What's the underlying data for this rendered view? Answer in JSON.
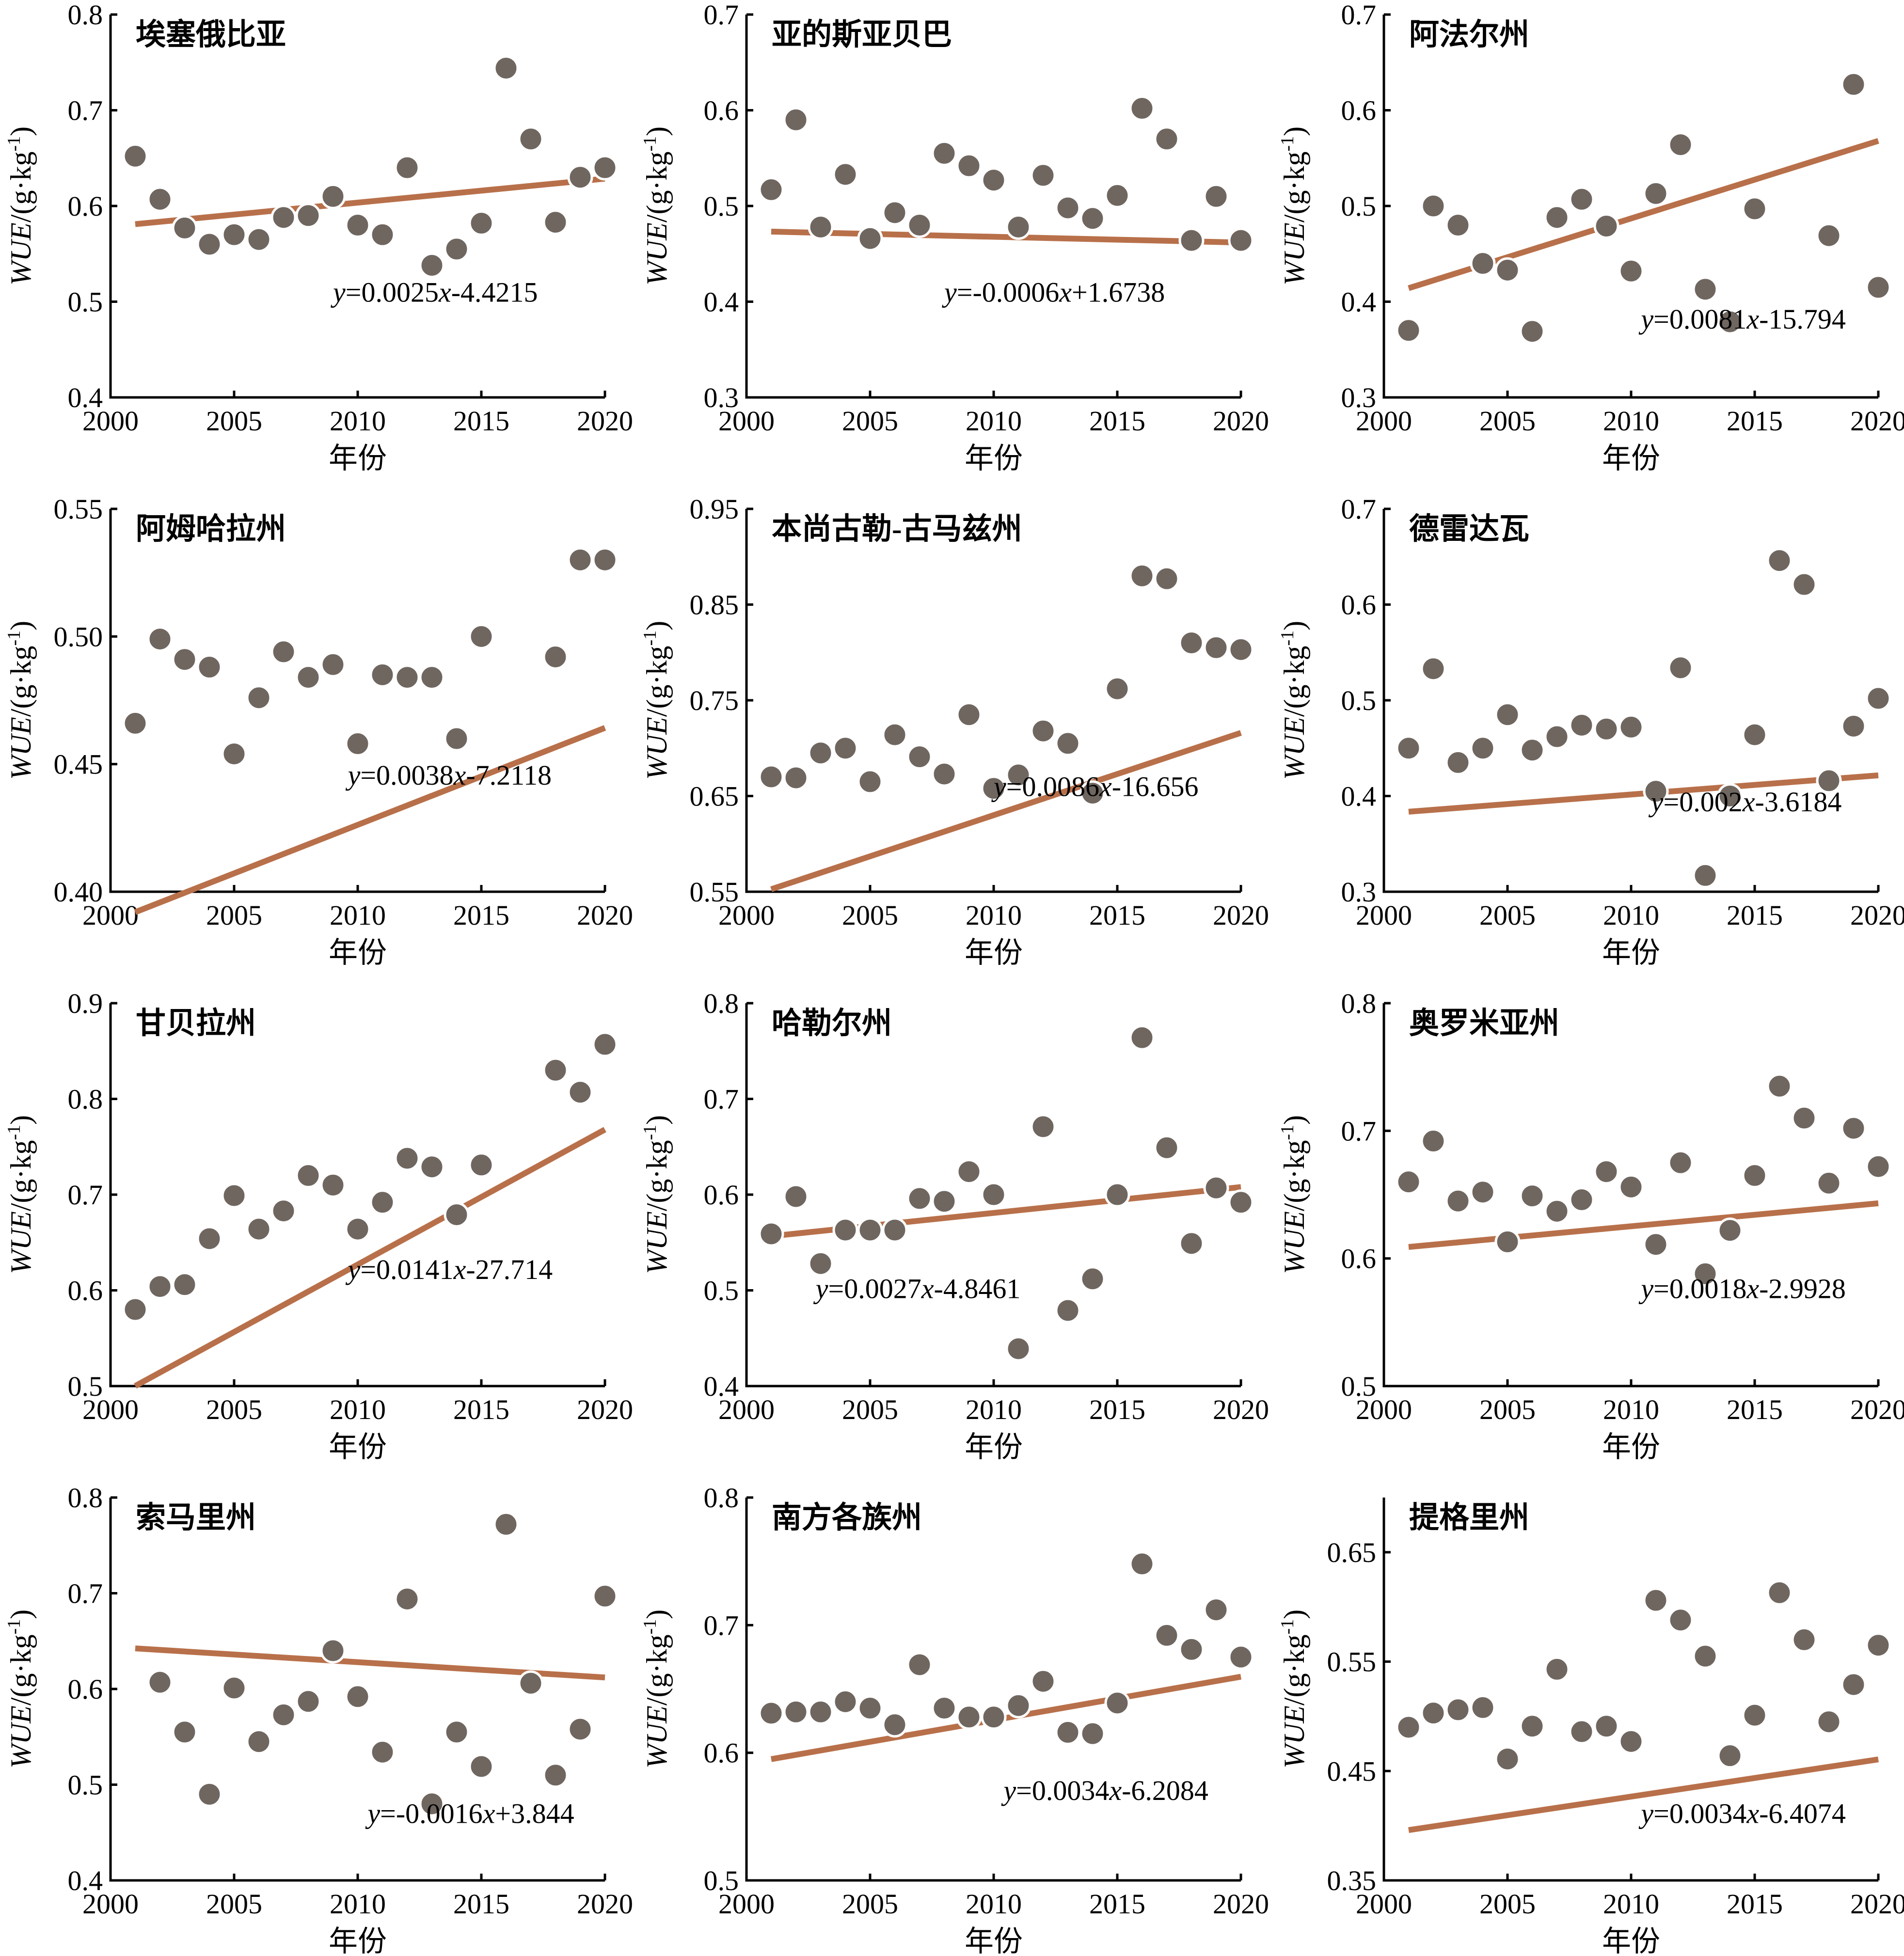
{
  "figure": {
    "xlabel": "年份",
    "ylabel_prefix": "WUE",
    "ylabel_unit": "/(g·kg",
    "ylabel_sup": "-1",
    "ylabel_close": ")"
  },
  "chart_data": [
    {
      "type": "scatter",
      "title": "埃塞俄比亚",
      "xlabel": "年份",
      "ylabel": "WUE/(g·kg-1)",
      "xlim": [
        2000,
        2020
      ],
      "ylim": [
        0.4,
        0.8
      ],
      "xticks": [
        2000,
        2005,
        2010,
        2015,
        2020
      ],
      "yticks": [
        "0.4",
        "0.5",
        "0.6",
        "0.7",
        "0.8"
      ],
      "x": [
        2001,
        2002,
        2003,
        2004,
        2005,
        2006,
        2007,
        2008,
        2009,
        2010,
        2011,
        2012,
        2013,
        2014,
        2015,
        2016,
        2017,
        2018,
        2019,
        2020
      ],
      "y": [
        0.652,
        0.607,
        0.577,
        0.56,
        0.57,
        0.565,
        0.588,
        0.59,
        0.61,
        0.58,
        0.57,
        0.64,
        0.538,
        0.555,
        0.582,
        0.744,
        0.67,
        0.583,
        0.63,
        0.64
      ],
      "fit": {
        "slope": 0.0025,
        "intercept": -4.4215,
        "equation": "y=0.0025x-4.4215"
      }
    },
    {
      "type": "scatter",
      "title": "亚的斯亚贝巴",
      "xlabel": "年份",
      "ylabel": "WUE/(g·kg-1)",
      "xlim": [
        2000,
        2020
      ],
      "ylim": [
        0.3,
        0.7
      ],
      "xticks": [
        2000,
        2005,
        2010,
        2015,
        2020
      ],
      "yticks": [
        "0.3",
        "0.4",
        "0.5",
        "0.6",
        "0.7"
      ],
      "x": [
        2001,
        2002,
        2003,
        2004,
        2005,
        2006,
        2007,
        2008,
        2009,
        2010,
        2011,
        2012,
        2013,
        2014,
        2015,
        2016,
        2017,
        2018,
        2019,
        2020
      ],
      "y": [
        0.517,
        0.59,
        0.478,
        0.533,
        0.466,
        0.493,
        0.48,
        0.555,
        0.542,
        0.527,
        0.478,
        0.532,
        0.498,
        0.487,
        0.511,
        0.602,
        0.57,
        0.464,
        0.51,
        0.464
      ],
      "fit": {
        "slope": -0.0006,
        "intercept": 1.6738,
        "equation": "y=-0.0006x+1.6738"
      }
    },
    {
      "type": "scatter",
      "title": "阿法尔州",
      "xlabel": "年份",
      "ylabel": "WUE/(g·kg-1)",
      "xlim": [
        2000,
        2020
      ],
      "ylim": [
        0.3,
        0.7
      ],
      "xticks": [
        2000,
        2005,
        2010,
        2015,
        2020
      ],
      "yticks": [
        "0.3",
        "0.4",
        "0.5",
        "0.6",
        "0.7"
      ],
      "x": [
        2001,
        2002,
        2003,
        2004,
        2005,
        2006,
        2007,
        2008,
        2009,
        2010,
        2011,
        2012,
        2013,
        2014,
        2015,
        2016,
        2017,
        2018,
        2019,
        2020
      ],
      "y": [
        0.37,
        0.5,
        0.48,
        0.44,
        0.433,
        0.369,
        0.488,
        0.507,
        0.479,
        0.432,
        0.513,
        0.564,
        0.413,
        0.379,
        0.497,
        null,
        null,
        0.469,
        0.627,
        0.415
      ],
      "fit": {
        "slope": 0.0081,
        "intercept": -15.794,
        "equation": "y=0.0081x-15.794"
      }
    },
    {
      "type": "scatter",
      "title": "阿姆哈拉州",
      "xlabel": "年份",
      "ylabel": "WUE/(g·kg-1)",
      "xlim": [
        2000,
        2020
      ],
      "ylim": [
        0.4,
        0.55
      ],
      "xticks": [
        2000,
        2005,
        2010,
        2015,
        2020
      ],
      "yticks": [
        "0.40",
        "0.45",
        "0.50",
        "0.55"
      ],
      "x": [
        2001,
        2002,
        2003,
        2004,
        2005,
        2006,
        2007,
        2008,
        2009,
        2010,
        2011,
        2012,
        2013,
        2014,
        2015,
        2016,
        2017,
        2018,
        2019,
        2020
      ],
      "y": [
        0.466,
        0.499,
        0.491,
        0.488,
        0.454,
        0.476,
        0.494,
        0.484,
        0.489,
        0.458,
        0.485,
        0.484,
        0.484,
        0.46,
        0.5,
        null,
        null,
        0.492,
        0.53,
        0.53
      ],
      "fit": {
        "slope": 0.0038,
        "intercept": -7.2118,
        "equation": "y=0.0038x-7.2118"
      }
    },
    {
      "type": "scatter",
      "title": "本尚古勒-古马兹州",
      "xlabel": "年份",
      "ylabel": "WUE/(g·kg-1)",
      "xlim": [
        2000,
        2020
      ],
      "ylim": [
        0.55,
        0.95
      ],
      "xticks": [
        2000,
        2005,
        2010,
        2015,
        2020
      ],
      "yticks": [
        "0.55",
        "0.65",
        "0.75",
        "0.85",
        "0.95"
      ],
      "x": [
        2001,
        2002,
        2003,
        2004,
        2005,
        2006,
        2007,
        2008,
        2009,
        2010,
        2011,
        2012,
        2013,
        2014,
        2015,
        2016,
        2017,
        2018,
        2019,
        2020
      ],
      "y": [
        0.67,
        0.669,
        0.695,
        0.7,
        0.665,
        0.714,
        0.691,
        0.673,
        0.735,
        0.658,
        0.672,
        0.718,
        0.705,
        0.653,
        0.762,
        0.88,
        0.877,
        0.81,
        0.805,
        0.803
      ],
      "fit": {
        "slope": 0.0086,
        "intercept": -16.656,
        "equation": "y=0.0086x-16.656"
      }
    },
    {
      "type": "scatter",
      "title": "德雷达瓦",
      "xlabel": "年份",
      "ylabel": "WUE/(g·kg-1)",
      "xlim": [
        2000,
        2020
      ],
      "ylim": [
        0.3,
        0.7
      ],
      "xticks": [
        2000,
        2005,
        2010,
        2015,
        2020
      ],
      "yticks": [
        "0.3",
        "0.4",
        "0.5",
        "0.6",
        "0.7"
      ],
      "x": [
        2001,
        2002,
        2003,
        2004,
        2005,
        2006,
        2007,
        2008,
        2009,
        2010,
        2011,
        2012,
        2013,
        2014,
        2015,
        2016,
        2017,
        2018,
        2019,
        2020
      ],
      "y": [
        0.45,
        0.533,
        0.435,
        0.45,
        0.485,
        0.448,
        0.462,
        0.474,
        0.47,
        0.472,
        0.405,
        0.534,
        0.317,
        0.4,
        0.464,
        0.646,
        0.621,
        0.416,
        0.473,
        0.502
      ],
      "fit": {
        "slope": 0.002,
        "intercept": -3.6184,
        "equation": "y=0.002x-3.6184"
      }
    },
    {
      "type": "scatter",
      "title": "甘贝拉州",
      "xlabel": "年份",
      "ylabel": "WUE/(g·kg-1)",
      "xlim": [
        2000,
        2020
      ],
      "ylim": [
        0.5,
        0.9
      ],
      "xticks": [
        2000,
        2005,
        2010,
        2015,
        2020
      ],
      "yticks": [
        "0.5",
        "0.6",
        "0.7",
        "0.8",
        "0.9"
      ],
      "x": [
        2001,
        2002,
        2003,
        2004,
        2005,
        2006,
        2007,
        2008,
        2009,
        2010,
        2011,
        2012,
        2013,
        2014,
        2015,
        2016,
        2017,
        2018,
        2019,
        2020
      ],
      "y": [
        0.58,
        0.604,
        0.606,
        0.654,
        0.699,
        0.664,
        0.683,
        0.72,
        0.71,
        0.664,
        0.692,
        0.738,
        0.729,
        0.679,
        0.731,
        null,
        null,
        0.83,
        0.807,
        0.857
      ],
      "fit": {
        "slope": 0.0141,
        "intercept": -27.714,
        "equation": "y=0.0141x-27.714"
      }
    },
    {
      "type": "scatter",
      "title": "哈勒尔州",
      "xlabel": "年份",
      "ylabel": "WUE/(g·kg-1)",
      "xlim": [
        2000,
        2020
      ],
      "ylim": [
        0.4,
        0.8
      ],
      "xticks": [
        2000,
        2005,
        2010,
        2015,
        2020
      ],
      "yticks": [
        "0.4",
        "0.5",
        "0.6",
        "0.7",
        "0.8"
      ],
      "x": [
        2001,
        2002,
        2003,
        2004,
        2005,
        2006,
        2007,
        2008,
        2009,
        2010,
        2011,
        2012,
        2013,
        2014,
        2015,
        2016,
        2017,
        2018,
        2019,
        2020
      ],
      "y": [
        0.559,
        0.598,
        0.528,
        0.563,
        0.563,
        0.563,
        0.596,
        0.593,
        0.624,
        0.6,
        0.439,
        0.671,
        0.479,
        0.512,
        0.6,
        0.764,
        0.649,
        0.549,
        0.607,
        0.592
      ],
      "fit": {
        "slope": 0.0027,
        "intercept": -4.8461,
        "equation": "y=0.0027x-4.8461"
      }
    },
    {
      "type": "scatter",
      "title": "奥罗米亚州",
      "xlabel": "年份",
      "ylabel": "WUE/(g·kg-1)",
      "xlim": [
        2000,
        2020
      ],
      "ylim": [
        0.5,
        0.8
      ],
      "xticks": [
        2000,
        2005,
        2010,
        2015,
        2020
      ],
      "yticks": [
        "0.5",
        "0.6",
        "0.7",
        "0.8"
      ],
      "x": [
        2001,
        2002,
        2003,
        2004,
        2005,
        2006,
        2007,
        2008,
        2009,
        2010,
        2011,
        2012,
        2013,
        2014,
        2015,
        2016,
        2017,
        2018,
        2019,
        2020
      ],
      "y": [
        0.66,
        0.692,
        0.645,
        0.652,
        0.613,
        0.649,
        0.637,
        0.646,
        0.668,
        0.656,
        0.611,
        0.675,
        0.588,
        0.622,
        0.665,
        0.735,
        0.71,
        0.659,
        0.702,
        0.672
      ],
      "fit": {
        "slope": 0.0018,
        "intercept": -2.9928,
        "equation": "y=0.0018x-2.9928"
      }
    },
    {
      "type": "scatter",
      "title": "索马里州",
      "xlabel": "年份",
      "ylabel": "WUE/(g·kg-1)",
      "xlim": [
        2000,
        2020
      ],
      "ylim": [
        0.4,
        0.8
      ],
      "xticks": [
        2000,
        2005,
        2010,
        2015,
        2020
      ],
      "yticks": [
        "0.4",
        "0.5",
        "0.6",
        "0.7",
        "0.8"
      ],
      "x": [
        2001,
        2002,
        2003,
        2004,
        2005,
        2006,
        2007,
        2008,
        2009,
        2010,
        2011,
        2012,
        2013,
        2014,
        2015,
        2016,
        2017,
        2018,
        2019,
        2020
      ],
      "y": [
        null,
        0.607,
        0.555,
        0.49,
        0.601,
        0.545,
        0.573,
        0.587,
        0.64,
        0.592,
        0.534,
        0.694,
        0.48,
        0.555,
        0.519,
        0.772,
        0.606,
        0.51,
        0.558,
        0.697
      ],
      "fit": {
        "slope": -0.0016,
        "intercept": 3.844,
        "equation": "y=-0.0016x+3.844"
      }
    },
    {
      "type": "scatter",
      "title": "南方各族州",
      "xlabel": "年份",
      "ylabel": "WUE/(g·kg-1)",
      "xlim": [
        2000,
        2020
      ],
      "ylim": [
        0.5,
        0.8
      ],
      "xticks": [
        2000,
        2005,
        2010,
        2015,
        2020
      ],
      "yticks": [
        "0.5",
        "0.6",
        "0.7",
        "0.8"
      ],
      "x": [
        2001,
        2002,
        2003,
        2004,
        2005,
        2006,
        2007,
        2008,
        2009,
        2010,
        2011,
        2012,
        2013,
        2014,
        2015,
        2016,
        2017,
        2018,
        2019,
        2020
      ],
      "y": [
        0.631,
        0.632,
        0.632,
        0.64,
        0.635,
        0.622,
        0.669,
        0.635,
        0.628,
        0.628,
        0.637,
        0.656,
        0.616,
        0.615,
        0.639,
        0.748,
        0.692,
        0.681,
        0.712,
        0.675
      ],
      "fit": {
        "slope": 0.0034,
        "intercept": -6.2084,
        "equation": "y=0.0034x-6.2084"
      }
    },
    {
      "type": "scatter",
      "title": "提格里州",
      "xlabel": "年份",
      "ylabel": "WUE/(g·kg-1)",
      "xlim": [
        2000,
        2020
      ],
      "ylim": [
        0.35,
        0.7
      ],
      "xticks": [
        2000,
        2005,
        2010,
        2015,
        2020
      ],
      "yticks": [
        "0.35",
        "0.45",
        "0.55",
        "0.65"
      ],
      "x": [
        2001,
        2002,
        2003,
        2004,
        2005,
        2006,
        2007,
        2008,
        2009,
        2010,
        2011,
        2012,
        2013,
        2014,
        2015,
        2016,
        2017,
        2018,
        2019,
        2020
      ],
      "y": [
        0.49,
        0.503,
        0.506,
        0.508,
        0.461,
        0.491,
        0.543,
        0.486,
        0.491,
        0.477,
        0.606,
        0.588,
        0.555,
        0.464,
        0.501,
        0.613,
        0.57,
        0.495,
        0.529,
        0.565
      ],
      "fit": {
        "slope": 0.0034,
        "intercept": -6.4074,
        "equation": "y=0.0034x-6.4074"
      }
    }
  ]
}
